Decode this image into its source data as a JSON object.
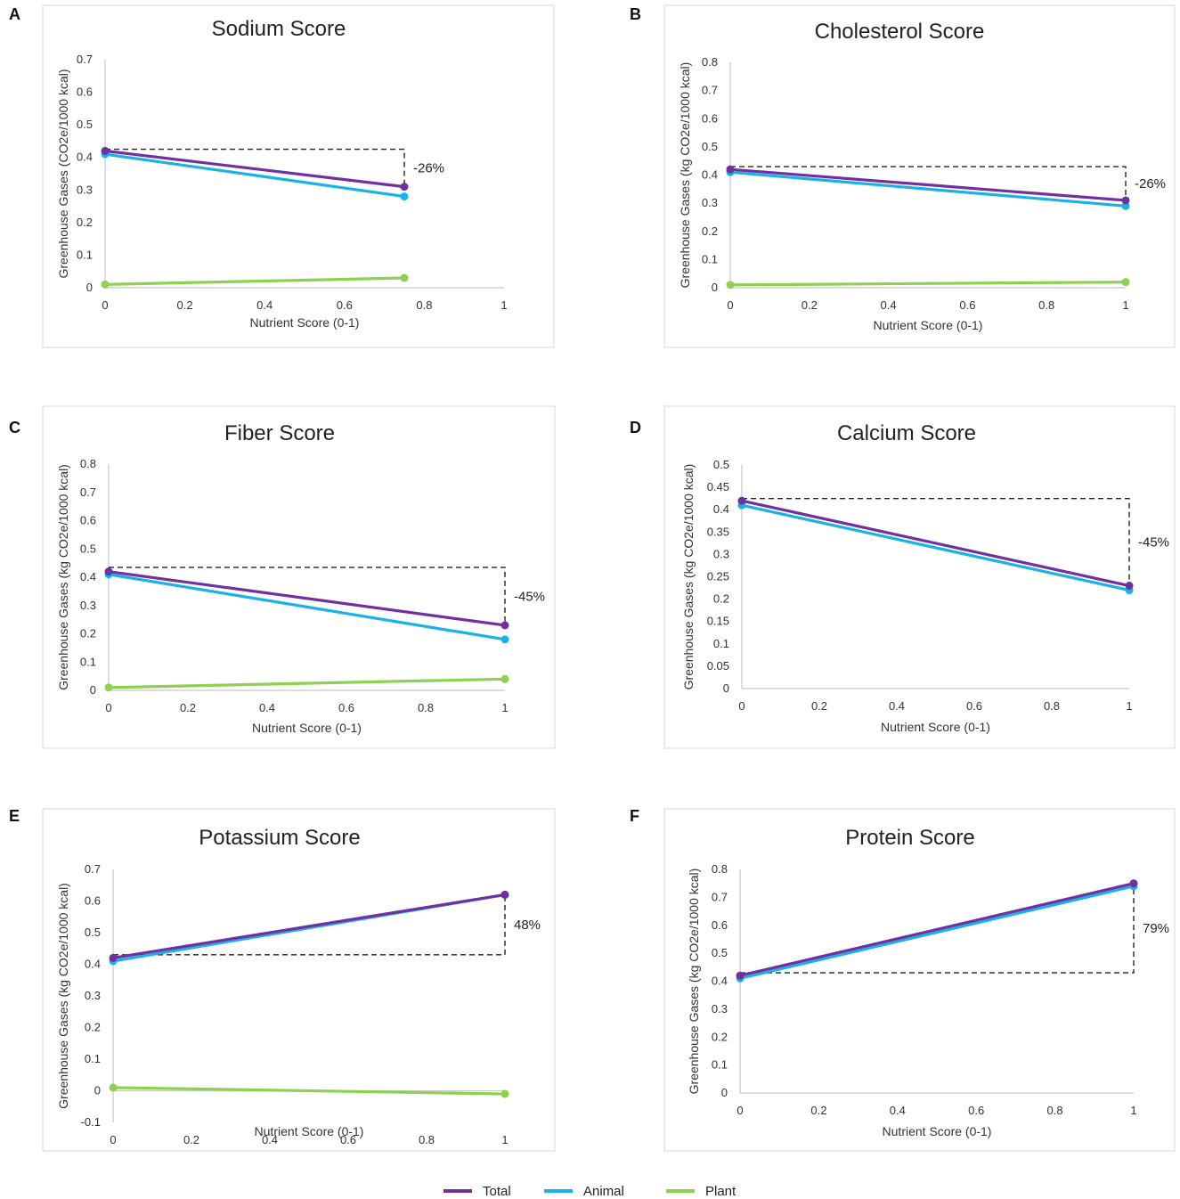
{
  "legend": [
    {
      "name": "Total",
      "color": "#7030a0"
    },
    {
      "name": "Animal",
      "color": "#19b2e8"
    },
    {
      "name": "Plant",
      "color": "#8dd14f"
    }
  ],
  "chart_data": [
    {
      "panel": "A",
      "type": "line",
      "title": "Sodium Score",
      "xlabel": "Nutrient Score (0-1)",
      "ylabel": "Greenhouse Gases (CO2e/1000 kcal)",
      "xlim": [
        0,
        1
      ],
      "ylim": [
        0,
        0.7
      ],
      "xticks": [
        "0",
        "0.2",
        "0.4",
        "0.6",
        "0.8",
        "1"
      ],
      "yticks": [
        "0",
        "0.1",
        "0.2",
        "0.3",
        "0.4",
        "0.5",
        "0.6",
        "0.7"
      ],
      "series": [
        {
          "name": "Total",
          "x": [
            0,
            0.75
          ],
          "y": [
            0.42,
            0.31
          ]
        },
        {
          "name": "Animal",
          "x": [
            0,
            0.75
          ],
          "y": [
            0.41,
            0.28
          ]
        },
        {
          "name": "Plant",
          "x": [
            0,
            0.75
          ],
          "y": [
            0.01,
            0.03
          ]
        }
      ],
      "change": {
        "label": "-26%",
        "x0": 0,
        "x1": 0.75,
        "y_ref": 0.425,
        "y_end": 0.31
      }
    },
    {
      "panel": "B",
      "type": "line",
      "title": "Cholesterol Score",
      "xlabel": "Nutrient Score (0-1)",
      "ylabel": "Greenhouse Gases (kg CO2e/1000 kcal)",
      "xlim": [
        0,
        1
      ],
      "ylim": [
        0,
        0.8
      ],
      "xticks": [
        "0",
        "0.2",
        "0.4",
        "0.6",
        "0.8",
        "1"
      ],
      "yticks": [
        "0",
        "0.1",
        "0.2",
        "0.3",
        "0.4",
        "0.5",
        "0.6",
        "0.7",
        "0.8"
      ],
      "series": [
        {
          "name": "Total",
          "x": [
            0,
            1
          ],
          "y": [
            0.42,
            0.31
          ]
        },
        {
          "name": "Animal",
          "x": [
            0,
            1
          ],
          "y": [
            0.41,
            0.29
          ]
        },
        {
          "name": "Plant",
          "x": [
            0,
            1
          ],
          "y": [
            0.01,
            0.02
          ]
        }
      ],
      "change": {
        "label": "-26%",
        "x0": 0,
        "x1": 1,
        "y_ref": 0.43,
        "y_end": 0.31
      }
    },
    {
      "panel": "C",
      "type": "line",
      "title": "Fiber Score",
      "xlabel": "Nutrient Score (0-1)",
      "ylabel": "Greenhouse Gases (kg CO2e/1000 kcal)",
      "xlim": [
        0,
        1
      ],
      "ylim": [
        0,
        0.8
      ],
      "xticks": [
        "0",
        "0.2",
        "0.4",
        "0.6",
        "0.8",
        "1"
      ],
      "yticks": [
        "0",
        "0.1",
        "0.2",
        "0.3",
        "0.4",
        "0.5",
        "0.6",
        "0.7",
        "0.8"
      ],
      "series": [
        {
          "name": "Total",
          "x": [
            0,
            1
          ],
          "y": [
            0.42,
            0.23
          ]
        },
        {
          "name": "Animal",
          "x": [
            0,
            1
          ],
          "y": [
            0.41,
            0.18
          ]
        },
        {
          "name": "Plant",
          "x": [
            0,
            1
          ],
          "y": [
            0.01,
            0.04
          ]
        }
      ],
      "change": {
        "label": "-45%",
        "x0": 0,
        "x1": 1,
        "y_ref": 0.435,
        "y_end": 0.23
      }
    },
    {
      "panel": "D",
      "type": "line",
      "title": "Calcium Score",
      "xlabel": "Nutrient Score (0-1)",
      "ylabel": "Greenhouse Gases (kg CO2e/1000 kcal)",
      "xlim": [
        0,
        1
      ],
      "ylim": [
        0,
        0.5
      ],
      "xticks": [
        "0",
        "0.2",
        "0.4",
        "0.6",
        "0.8",
        "1"
      ],
      "yticks": [
        "0",
        "0.05",
        "0.1",
        "0.15",
        "0.2",
        "0.25",
        "0.3",
        "0.35",
        "0.4",
        "0.45",
        "0.5"
      ],
      "series": [
        {
          "name": "Total",
          "x": [
            0,
            1
          ],
          "y": [
            0.42,
            0.23
          ]
        },
        {
          "name": "Animal",
          "x": [
            0,
            1
          ],
          "y": [
            0.41,
            0.22
          ]
        }
      ],
      "change": {
        "label": "-45%",
        "x0": 0,
        "x1": 1,
        "y_ref": 0.425,
        "y_end": 0.23
      }
    },
    {
      "panel": "E",
      "type": "line",
      "title": "Potassium Score",
      "xlabel": "Nutrient Score (0-1)",
      "ylabel": "Greenhouse Gases (kg CO2e/1000 kcal)",
      "xlim": [
        0,
        1
      ],
      "ylim": [
        -0.1,
        0.7
      ],
      "xticks": [
        "0",
        "0.2",
        "0.4",
        "0.6",
        "0.8",
        "1"
      ],
      "yticks": [
        "-0.1",
        "0",
        "0.1",
        "0.2",
        "0.3",
        "0.4",
        "0.5",
        "0.6",
        "0.7"
      ],
      "series": [
        {
          "name": "Total",
          "x": [
            0,
            1
          ],
          "y": [
            0.42,
            0.62
          ]
        },
        {
          "name": "Animal",
          "x": [
            0,
            1
          ],
          "y": [
            0.41,
            0.62
          ]
        },
        {
          "name": "Plant",
          "x": [
            0,
            1
          ],
          "y": [
            0.01,
            -0.01
          ]
        }
      ],
      "change": {
        "label": "48%",
        "x0": 0,
        "x1": 1,
        "y_ref": 0.43,
        "y_end": 0.62
      }
    },
    {
      "panel": "F",
      "type": "line",
      "title": "Protein Score",
      "xlabel": "Nutrient Score (0-1)",
      "ylabel": "Greenhouse Gases (kg CO2e/1000 kcal)",
      "xlim": [
        0,
        1
      ],
      "ylim": [
        0,
        0.8
      ],
      "xticks": [
        "0",
        "0.2",
        "0.4",
        "0.6",
        "0.8",
        "1"
      ],
      "yticks": [
        "0",
        "0.1",
        "0.2",
        "0.3",
        "0.4",
        "0.5",
        "0.6",
        "0.7",
        "0.8"
      ],
      "series": [
        {
          "name": "Total",
          "x": [
            0,
            1
          ],
          "y": [
            0.42,
            0.75
          ]
        },
        {
          "name": "Animal",
          "x": [
            0,
            1
          ],
          "y": [
            0.41,
            0.74
          ]
        }
      ],
      "change": {
        "label": "79%",
        "x0": 0,
        "x1": 1,
        "y_ref": 0.43,
        "y_end": 0.75
      }
    }
  ]
}
